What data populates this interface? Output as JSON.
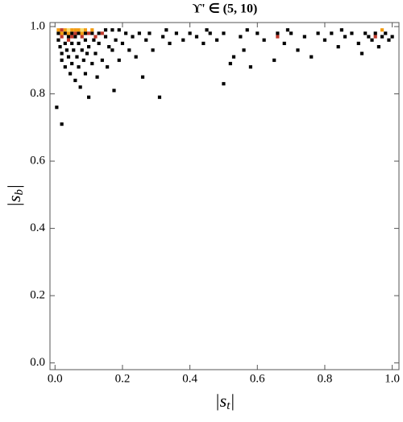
{
  "chart_data": {
    "type": "density_scatter",
    "title": "ϒ' ∈ (5, 10)",
    "x_label": {
      "before": "|s",
      "sub": "t",
      "after": "|"
    },
    "y_label": {
      "before": "|s",
      "sub": "b",
      "after": "|"
    },
    "xlim": [
      -0.015,
      1.02
    ],
    "ylim": [
      -0.02,
      1.012
    ],
    "xticks": [
      {
        "value": 0,
        "label": "0.0"
      },
      0.2,
      0.4,
      0.6,
      0.8,
      {
        "value": 1,
        "label": "1.0"
      }
    ],
    "yticks": [
      {
        "value": 0,
        "label": "0.0"
      },
      0.2,
      0.4,
      0.6,
      0.8,
      {
        "value": 1,
        "label": "1.0"
      }
    ],
    "cell_size": 0.01,
    "series": [
      {
        "color": "#000000",
        "x": [
          0.01,
          0.015,
          0.02,
          0.02,
          0.03,
          0.03,
          0.035,
          0.04,
          0.04,
          0.045,
          0.05,
          0.05,
          0.055,
          0.06,
          0.06,
          0.065,
          0.07,
          0.07,
          0.075,
          0.08,
          0.085,
          0.09,
          0.09,
          0.095,
          0.1,
          0.1,
          0.11,
          0.115,
          0.12,
          0.125,
          0.13,
          0.14,
          0.15,
          0.155,
          0.16,
          0.17,
          0.175,
          0.18,
          0.19,
          0.2,
          0.21,
          0.22,
          0.23,
          0.24,
          0.25,
          0.26,
          0.27,
          0.28,
          0.29,
          0.31,
          0.32,
          0.34,
          0.36,
          0.38,
          0.4,
          0.42,
          0.44,
          0.46,
          0.48,
          0.5,
          0.5,
          0.52,
          0.53,
          0.55,
          0.56,
          0.58,
          0.6,
          0.62,
          0.65,
          0.66,
          0.68,
          0.7,
          0.72,
          0.74,
          0.76,
          0.78,
          0.8,
          0.82,
          0.84,
          0.86,
          0.88,
          0.9,
          0.91,
          0.92,
          0.93,
          0.94,
          0.95,
          0.96,
          0.97,
          0.98,
          0.99,
          1.0,
          0.005,
          0.02,
          0.01,
          0.03,
          0.05,
          0.07,
          0.09,
          0.11,
          0.13,
          0.15,
          0.17,
          0.19,
          0.33,
          0.45,
          0.57,
          0.69,
          0.85
        ],
        "y": [
          0.96,
          0.94,
          0.92,
          0.9,
          0.95,
          0.88,
          0.93,
          0.97,
          0.91,
          0.86,
          0.95,
          0.89,
          0.93,
          0.84,
          0.97,
          0.91,
          0.88,
          0.95,
          0.82,
          0.93,
          0.9,
          0.96,
          0.86,
          0.92,
          0.94,
          0.79,
          0.89,
          0.96,
          0.92,
          0.85,
          0.95,
          0.9,
          0.97,
          0.88,
          0.94,
          0.93,
          0.81,
          0.96,
          0.9,
          0.95,
          0.98,
          0.93,
          0.97,
          0.91,
          0.98,
          0.85,
          0.96,
          0.98,
          0.93,
          0.79,
          0.97,
          0.95,
          0.98,
          0.96,
          0.98,
          0.97,
          0.95,
          0.98,
          0.96,
          0.83,
          0.98,
          0.89,
          0.91,
          0.97,
          0.93,
          0.88,
          0.98,
          0.96,
          0.9,
          0.98,
          0.95,
          0.98,
          0.93,
          0.97,
          0.91,
          0.98,
          0.96,
          0.98,
          0.94,
          0.97,
          0.98,
          0.95,
          0.92,
          0.98,
          0.97,
          0.96,
          0.98,
          0.94,
          0.97,
          0.98,
          0.96,
          0.97,
          0.76,
          0.71,
          0.98,
          0.98,
          0.98,
          0.98,
          0.98,
          0.98,
          0.98,
          0.99,
          0.99,
          0.99,
          0.99,
          0.99,
          0.99,
          0.99,
          0.99
        ]
      },
      {
        "color": "#c0392b",
        "x": [
          0.02,
          0.04,
          0.06,
          0.08,
          0.1,
          0.12,
          0.05,
          0.66,
          0.95,
          0.02,
          0.14
        ],
        "y": [
          0.97,
          0.96,
          0.98,
          0.97,
          0.98,
          0.97,
          0.97,
          0.97,
          0.97,
          0.99,
          0.98
        ]
      },
      {
        "color": "#f39c12",
        "x": [
          0.01,
          0.03,
          0.04,
          0.05,
          0.06,
          0.07,
          0.08,
          0.09,
          0.11,
          0.97,
          0.02
        ],
        "y": [
          0.99,
          0.99,
          0.98,
          0.99,
          0.99,
          0.99,
          0.98,
          0.99,
          0.99,
          0.99,
          0.98
        ]
      },
      {
        "color": "#f7dc6f",
        "x": [
          0.04,
          0.08
        ],
        "y": [
          0.99,
          0.99
        ]
      }
    ]
  }
}
